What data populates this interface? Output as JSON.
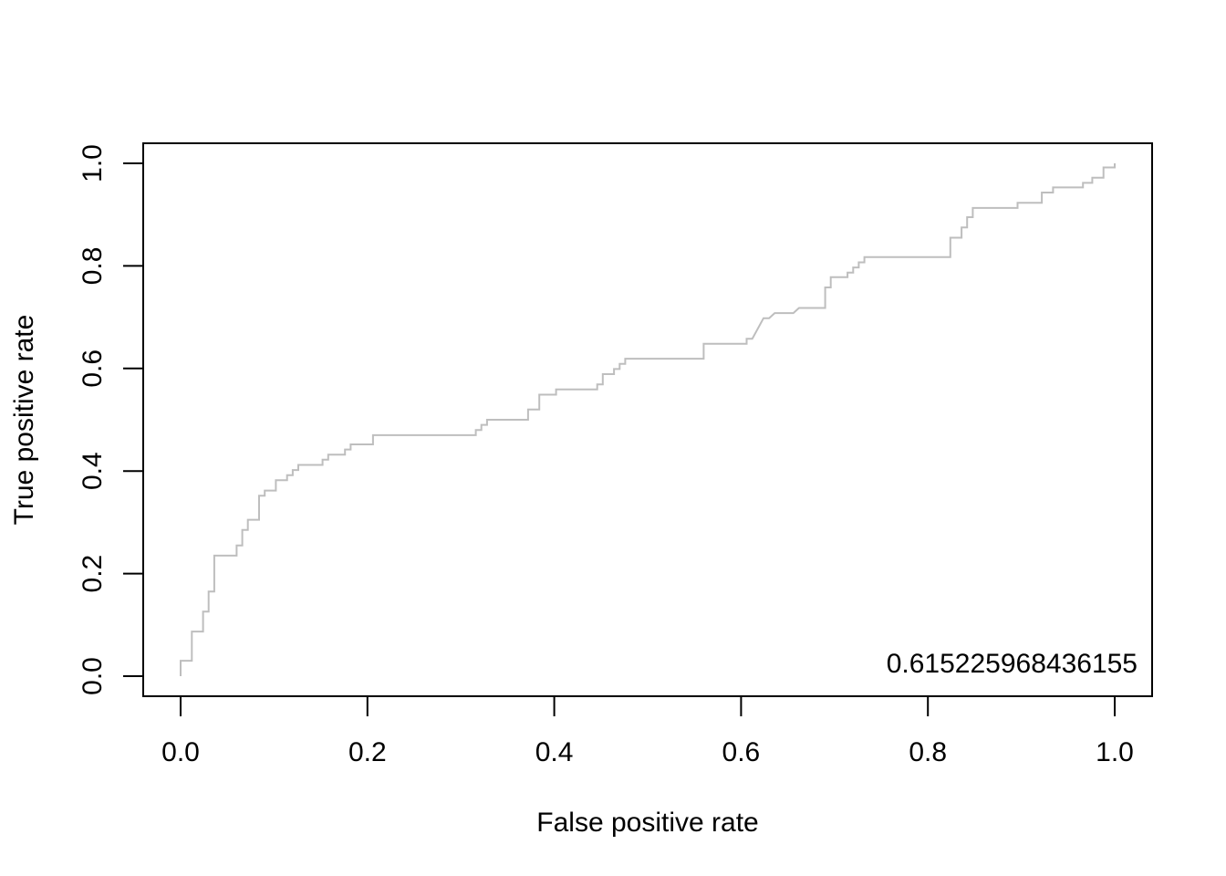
{
  "chart_data": {
    "type": "line",
    "title": "",
    "xlabel": "False positive rate",
    "ylabel": "True positive rate",
    "xlim": [
      0,
      1
    ],
    "ylim": [
      0,
      1
    ],
    "x_ticks": [
      "0.0",
      "0.2",
      "0.4",
      "0.6",
      "0.8",
      "1.0"
    ],
    "y_ticks": [
      "0.0",
      "0.2",
      "0.4",
      "0.6",
      "0.8",
      "1.0"
    ],
    "annotation": "0.615225968436155",
    "grid": false,
    "legend": "none",
    "line_color": "#bebebe",
    "series": [
      {
        "values": [
          [
            0.0,
            0.0
          ],
          [
            0.0,
            0.03
          ],
          [
            0.012,
            0.03
          ],
          [
            0.012,
            0.087
          ],
          [
            0.024,
            0.087
          ],
          [
            0.024,
            0.126
          ],
          [
            0.03,
            0.126
          ],
          [
            0.03,
            0.165
          ],
          [
            0.036,
            0.165
          ],
          [
            0.036,
            0.235
          ],
          [
            0.06,
            0.235
          ],
          [
            0.06,
            0.255
          ],
          [
            0.066,
            0.255
          ],
          [
            0.066,
            0.285
          ],
          [
            0.072,
            0.285
          ],
          [
            0.072,
            0.305
          ],
          [
            0.084,
            0.305
          ],
          [
            0.084,
            0.352
          ],
          [
            0.09,
            0.352
          ],
          [
            0.09,
            0.362
          ],
          [
            0.102,
            0.362
          ],
          [
            0.102,
            0.382
          ],
          [
            0.114,
            0.382
          ],
          [
            0.114,
            0.392
          ],
          [
            0.12,
            0.392
          ],
          [
            0.12,
            0.402
          ],
          [
            0.126,
            0.402
          ],
          [
            0.126,
            0.412
          ],
          [
            0.152,
            0.412
          ],
          [
            0.152,
            0.422
          ],
          [
            0.158,
            0.422
          ],
          [
            0.158,
            0.432
          ],
          [
            0.176,
            0.432
          ],
          [
            0.176,
            0.442
          ],
          [
            0.182,
            0.442
          ],
          [
            0.182,
            0.452
          ],
          [
            0.206,
            0.452
          ],
          [
            0.206,
            0.47
          ],
          [
            0.316,
            0.47
          ],
          [
            0.316,
            0.48
          ],
          [
            0.322,
            0.48
          ],
          [
            0.322,
            0.49
          ],
          [
            0.328,
            0.49
          ],
          [
            0.328,
            0.5
          ],
          [
            0.372,
            0.5
          ],
          [
            0.372,
            0.52
          ],
          [
            0.384,
            0.52
          ],
          [
            0.384,
            0.549
          ],
          [
            0.402,
            0.549
          ],
          [
            0.402,
            0.559
          ],
          [
            0.446,
            0.559
          ],
          [
            0.446,
            0.569
          ],
          [
            0.452,
            0.569
          ],
          [
            0.452,
            0.589
          ],
          [
            0.464,
            0.589
          ],
          [
            0.464,
            0.599
          ],
          [
            0.47,
            0.599
          ],
          [
            0.47,
            0.609
          ],
          [
            0.476,
            0.609
          ],
          [
            0.476,
            0.619
          ],
          [
            0.56,
            0.619
          ],
          [
            0.56,
            0.648
          ],
          [
            0.606,
            0.648
          ],
          [
            0.606,
            0.658
          ],
          [
            0.612,
            0.658
          ],
          [
            0.624,
            0.698
          ],
          [
            0.63,
            0.698
          ],
          [
            0.636,
            0.708
          ],
          [
            0.656,
            0.708
          ],
          [
            0.662,
            0.718
          ],
          [
            0.69,
            0.718
          ],
          [
            0.69,
            0.758
          ],
          [
            0.696,
            0.758
          ],
          [
            0.696,
            0.778
          ],
          [
            0.714,
            0.778
          ],
          [
            0.714,
            0.787
          ],
          [
            0.72,
            0.787
          ],
          [
            0.72,
            0.797
          ],
          [
            0.726,
            0.797
          ],
          [
            0.726,
            0.807
          ],
          [
            0.732,
            0.807
          ],
          [
            0.732,
            0.817
          ],
          [
            0.824,
            0.817
          ],
          [
            0.824,
            0.855
          ],
          [
            0.836,
            0.855
          ],
          [
            0.836,
            0.875
          ],
          [
            0.842,
            0.875
          ],
          [
            0.842,
            0.895
          ],
          [
            0.848,
            0.895
          ],
          [
            0.848,
            0.913
          ],
          [
            0.896,
            0.913
          ],
          [
            0.896,
            0.923
          ],
          [
            0.922,
            0.923
          ],
          [
            0.922,
            0.943
          ],
          [
            0.934,
            0.943
          ],
          [
            0.934,
            0.953
          ],
          [
            0.966,
            0.953
          ],
          [
            0.966,
            0.962
          ],
          [
            0.976,
            0.962
          ],
          [
            0.976,
            0.972
          ],
          [
            0.988,
            0.972
          ],
          [
            0.988,
            0.992
          ],
          [
            1.0,
            0.992
          ],
          [
            1.0,
            1.0
          ]
        ]
      }
    ]
  }
}
